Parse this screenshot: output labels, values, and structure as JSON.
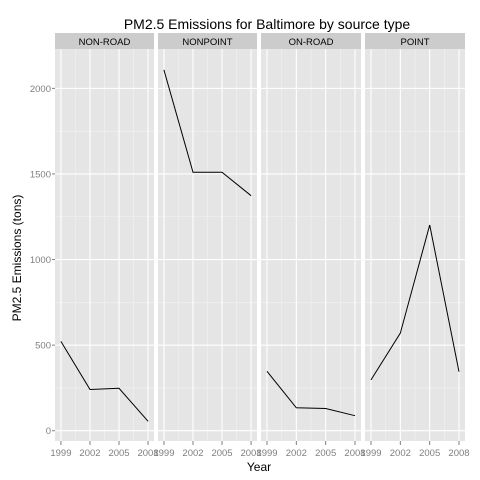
{
  "chart_data": {
    "type": "line",
    "title": "PM2.5 Emissions for Baltimore by source type",
    "xlabel": "Year",
    "ylabel": "PM2.5 Emissions (tons)",
    "x": [
      1999,
      2002,
      2005,
      2008
    ],
    "x_tick_labels": [
      "1999",
      "2002",
      "2005",
      "2008"
    ],
    "y_ticks": [
      0,
      500,
      1000,
      1500,
      2000
    ],
    "y_tick_labels": [
      "0",
      "500",
      "1000",
      "1500",
      "2000"
    ],
    "ylim": [
      -60,
      2230
    ],
    "grid": true,
    "facets": [
      {
        "name": "NON-ROAD",
        "values": [
          522,
          241,
          248,
          55
        ]
      },
      {
        "name": "NONPOINT",
        "values": [
          2108,
          1510,
          1510,
          1373
        ]
      },
      {
        "name": "ON-ROAD",
        "values": [
          347,
          134,
          130,
          88
        ]
      },
      {
        "name": "POINT",
        "values": [
          297,
          570,
          1202,
          345
        ]
      }
    ],
    "colors": {
      "panel": "#e5e5e5",
      "strip": "#cccccc",
      "grid_major": "#ffffff",
      "grid_minor": "#f2f2f2",
      "line": "#000000",
      "axis_text": "#7f7f7f",
      "text": "#000000"
    }
  }
}
